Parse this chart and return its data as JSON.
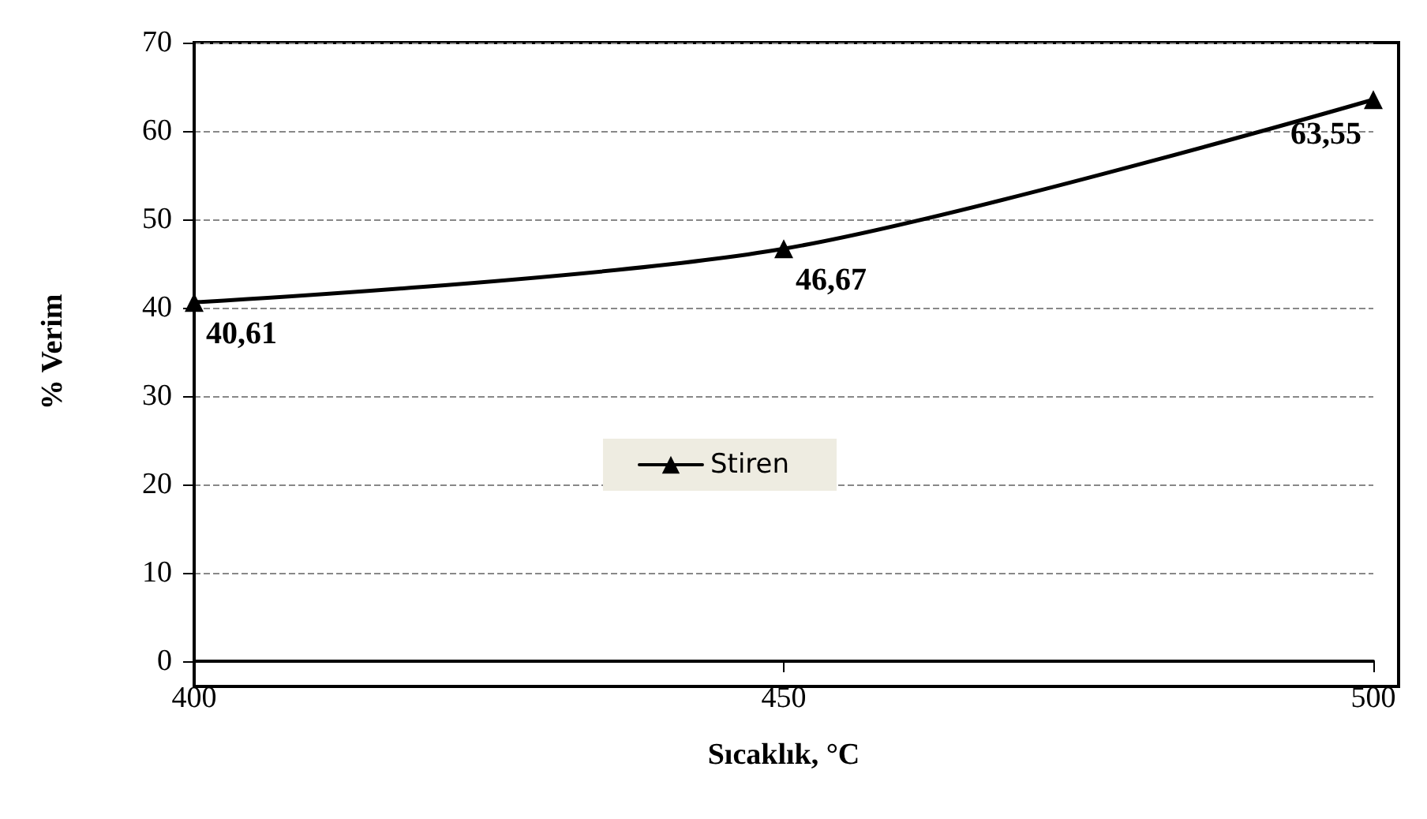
{
  "chart_data": {
    "type": "line",
    "xlabel": "Sıcaklık, °C",
    "ylabel": "% Verim",
    "x": [
      400,
      450,
      500
    ],
    "series": [
      {
        "name": "Stiren",
        "color": "#000000",
        "values": [
          40.61,
          46.67,
          63.55
        ],
        "value_labels": [
          "40,61",
          "46,67",
          "63,55"
        ]
      }
    ],
    "xlim": [
      400,
      500
    ],
    "xticks": [
      400,
      450,
      500
    ],
    "ylim": [
      0,
      70
    ],
    "yticks": [
      0,
      10,
      20,
      30,
      40,
      50,
      60,
      70
    ],
    "grid": "y",
    "legend": "center",
    "marker": "triangle",
    "line_style": "solid"
  }
}
